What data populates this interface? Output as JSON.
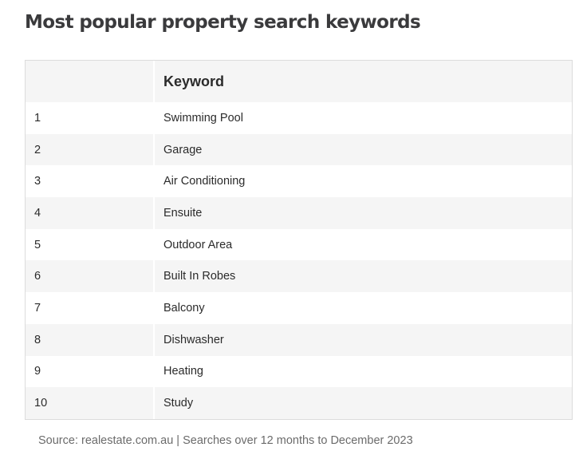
{
  "title": "Most popular property search keywords",
  "table": {
    "headers": [
      "",
      "Keyword"
    ],
    "rows": [
      {
        "rank": "1",
        "keyword": "Swimming Pool"
      },
      {
        "rank": "2",
        "keyword": "Garage"
      },
      {
        "rank": "3",
        "keyword": "Air Conditioning"
      },
      {
        "rank": "4",
        "keyword": "Ensuite"
      },
      {
        "rank": "5",
        "keyword": "Outdoor Area"
      },
      {
        "rank": "6",
        "keyword": "Built In Robes"
      },
      {
        "rank": "7",
        "keyword": "Balcony"
      },
      {
        "rank": "8",
        "keyword": "Dishwasher"
      },
      {
        "rank": "9",
        "keyword": "Heating"
      },
      {
        "rank": "10",
        "keyword": "Study"
      }
    ]
  },
  "source": "Source: realestate.com.au | Searches over 12 months to December 2023",
  "colors": {
    "title": "#3a3a3c",
    "text": "#2b2b2b",
    "source": "#6b6b6b",
    "stripe": "#f5f5f5",
    "border": "#dcdcdc"
  }
}
